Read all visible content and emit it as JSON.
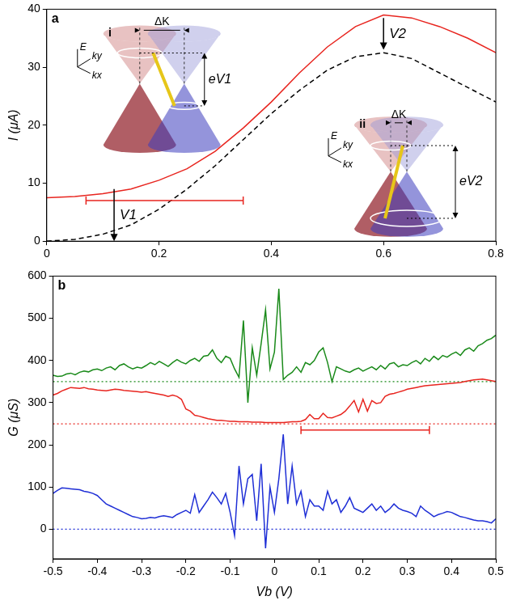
{
  "chart_data": [
    {
      "type": "line",
      "panel": "a",
      "ylabel": "I (μA)",
      "xlim": [
        0,
        0.8
      ],
      "xticks": [
        0,
        0.2,
        0.4,
        0.6,
        0.8
      ],
      "ylim": [
        0,
        40
      ],
      "yticks": [
        0,
        10,
        20,
        30,
        40
      ],
      "x": [
        0,
        0.05,
        0.1,
        0.15,
        0.2,
        0.25,
        0.3,
        0.35,
        0.4,
        0.45,
        0.5,
        0.55,
        0.6,
        0.65,
        0.7,
        0.75,
        0.8
      ],
      "series": [
        {
          "color": "#e8251f",
          "line_style": "solid",
          "values": [
            7.5,
            7.7,
            8.2,
            9,
            10.5,
            12.5,
            15.5,
            19.5,
            24,
            29,
            33.5,
            37,
            39,
            38.5,
            37,
            35,
            32.5
          ]
        },
        {
          "color": "#000000",
          "line_style": "dashed",
          "values": [
            0,
            0.3,
            1.2,
            2.8,
            5.5,
            9,
            13,
            17.5,
            22,
            26,
            29.5,
            31.8,
            32.5,
            31.5,
            29,
            26.5,
            24
          ]
        }
      ],
      "range_bars": [
        {
          "x": [
            0.07,
            0.35
          ],
          "y": 7,
          "color": "#e8251f"
        }
      ],
      "arrows": [
        {
          "label": "V1",
          "x": 0.12,
          "from": 9,
          "to": 0
        },
        {
          "label": "V2",
          "x": 0.6,
          "from": 38.5,
          "to": 33
        }
      ],
      "insets": [
        {
          "label": "i",
          "delta": "ΔK",
          "energy": "eV1",
          "axes": [
            "E",
            "ky",
            "kx"
          ]
        },
        {
          "label": "ii",
          "delta": "ΔK",
          "energy": "eV2",
          "axes": [
            "E",
            "ky",
            "kx"
          ]
        }
      ]
    },
    {
      "type": "line",
      "panel": "b",
      "xlabel": "Vb (V)",
      "ylabel": "G (μS)",
      "xlim": [
        -0.5,
        0.5
      ],
      "xticks": [
        -0.5,
        -0.4,
        -0.3,
        -0.2,
        -0.1,
        0,
        0.1,
        0.2,
        0.3,
        0.4,
        0.5
      ],
      "ylim": [
        -70,
        600
      ],
      "yticks": [
        0,
        100,
        200,
        300,
        400,
        500,
        600
      ],
      "x": [
        -0.5,
        -0.49,
        -0.48,
        -0.47,
        -0.46,
        -0.45,
        -0.44,
        -0.43,
        -0.42,
        -0.41,
        -0.4,
        -0.39,
        -0.38,
        -0.37,
        -0.36,
        -0.35,
        -0.34,
        -0.33,
        -0.32,
        -0.31,
        -0.3,
        -0.29,
        -0.28,
        -0.27,
        -0.26,
        -0.25,
        -0.24,
        -0.23,
        -0.22,
        -0.21,
        -0.2,
        -0.19,
        -0.18,
        -0.17,
        -0.16,
        -0.15,
        -0.14,
        -0.13,
        -0.12,
        -0.11,
        -0.1,
        -0.09,
        -0.08,
        -0.07,
        -0.06,
        -0.05,
        -0.04,
        -0.03,
        -0.02,
        -0.01,
        0,
        0.01,
        0.02,
        0.03,
        0.04,
        0.05,
        0.06,
        0.07,
        0.08,
        0.09,
        0.1,
        0.11,
        0.12,
        0.13,
        0.14,
        0.15,
        0.16,
        0.17,
        0.18,
        0.19,
        0.2,
        0.21,
        0.22,
        0.23,
        0.24,
        0.25,
        0.26,
        0.27,
        0.28,
        0.29,
        0.3,
        0.31,
        0.32,
        0.33,
        0.34,
        0.35,
        0.36,
        0.37,
        0.38,
        0.39,
        0.4,
        0.41,
        0.42,
        0.43,
        0.44,
        0.45,
        0.46,
        0.47,
        0.48,
        0.49,
        0.5
      ],
      "series": [
        {
          "color": "#1a8a1a",
          "line_style": "solid",
          "values": [
            365,
            362,
            363,
            368,
            370,
            366,
            372,
            375,
            373,
            378,
            380,
            376,
            382,
            385,
            378,
            388,
            392,
            385,
            380,
            384,
            382,
            388,
            395,
            390,
            398,
            392,
            386,
            395,
            402,
            396,
            392,
            400,
            405,
            398,
            410,
            412,
            425,
            405,
            395,
            410,
            405,
            380,
            360,
            495,
            300,
            430,
            365,
            440,
            520,
            380,
            420,
            570,
            355,
            365,
            372,
            385,
            372,
            395,
            390,
            400,
            420,
            430,
            395,
            350,
            385,
            380,
            375,
            372,
            378,
            382,
            375,
            380,
            385,
            378,
            388,
            380,
            392,
            395,
            385,
            390,
            388,
            395,
            400,
            392,
            405,
            398,
            410,
            402,
            412,
            408,
            415,
            420,
            412,
            425,
            430,
            422,
            435,
            440,
            448,
            452,
            460
          ]
        },
        {
          "color": "#e8251f",
          "line_style": "solid",
          "values": [
            318,
            322,
            328,
            332,
            336,
            335,
            334,
            336,
            333,
            332,
            330,
            329,
            328,
            330,
            332,
            331,
            329,
            328,
            327,
            326,
            325,
            326,
            324,
            322,
            320,
            318,
            315,
            318,
            315,
            308,
            285,
            280,
            270,
            268,
            265,
            262,
            260,
            258,
            258,
            257,
            256,
            256,
            255,
            255,
            255,
            254,
            254,
            254,
            253,
            253,
            253,
            253,
            253,
            254,
            255,
            255,
            256,
            260,
            272,
            262,
            262,
            275,
            265,
            264,
            268,
            272,
            280,
            292,
            305,
            278,
            308,
            280,
            305,
            298,
            300,
            315,
            320,
            322,
            325,
            328,
            332,
            334,
            336,
            338,
            340,
            341,
            342,
            343,
            344,
            345,
            346,
            347,
            348,
            350,
            352,
            354,
            355,
            356,
            354,
            352,
            350
          ]
        },
        {
          "color": "#1f2fd6",
          "line_style": "solid",
          "values": [
            85,
            92,
            98,
            97,
            96,
            95,
            94,
            90,
            88,
            85,
            80,
            70,
            60,
            55,
            50,
            45,
            40,
            35,
            30,
            28,
            25,
            26,
            28,
            27,
            30,
            32,
            30,
            28,
            35,
            40,
            45,
            38,
            82,
            40,
            55,
            70,
            88,
            75,
            60,
            85,
            40,
            -15,
            150,
            60,
            120,
            130,
            20,
            155,
            -45,
            100,
            40,
            120,
            225,
            60,
            150,
            60,
            90,
            30,
            70,
            55,
            55,
            45,
            90,
            60,
            70,
            40,
            55,
            75,
            50,
            45,
            40,
            50,
            60,
            45,
            55,
            40,
            48,
            60,
            50,
            45,
            42,
            38,
            30,
            55,
            45,
            38,
            30,
            35,
            38,
            42,
            40,
            35,
            30,
            28,
            25,
            22,
            20,
            20,
            18,
            15,
            25
          ]
        }
      ],
      "reference_lines": [
        {
          "value": 350,
          "color": "#1a8a1a"
        },
        {
          "value": 250,
          "color": "#e8251f"
        },
        {
          "value": 0,
          "color": "#1f2fd6"
        }
      ],
      "range_bars": [
        {
          "x": [
            0.06,
            0.35
          ],
          "y": 235,
          "color": "#e8251f"
        }
      ]
    }
  ]
}
